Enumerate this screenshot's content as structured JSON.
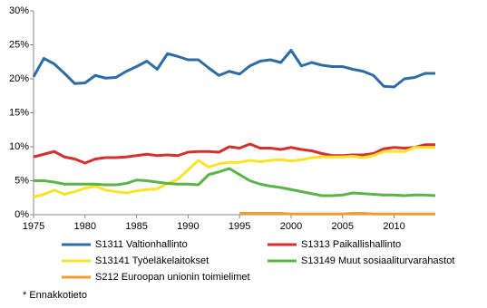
{
  "chart_data": {
    "type": "line",
    "x": [
      1975,
      1976,
      1977,
      1978,
      1979,
      1980,
      1981,
      1982,
      1983,
      1984,
      1985,
      1986,
      1987,
      1988,
      1989,
      1990,
      1991,
      1992,
      1993,
      1994,
      1995,
      1996,
      1997,
      1998,
      1999,
      2000,
      2001,
      2002,
      2003,
      2004,
      2005,
      2006,
      2007,
      2008,
      2009,
      2010,
      2011,
      2012,
      2013,
      2014
    ],
    "series": [
      {
        "name": "S1311 Valtionhallinto",
        "color": "#2e6ca4",
        "values": [
          20.3,
          23.0,
          22.2,
          20.8,
          19.3,
          19.4,
          20.5,
          20.1,
          20.2,
          21.1,
          21.8,
          22.6,
          21.4,
          23.7,
          23.3,
          22.8,
          22.8,
          21.6,
          20.5,
          21.1,
          20.7,
          21.9,
          22.6,
          22.8,
          22.4,
          24.2,
          21.9,
          22.4,
          22.0,
          21.8,
          21.8,
          21.4,
          21.1,
          20.5,
          18.9,
          18.8,
          20.0,
          20.2,
          20.8,
          20.8
        ]
      },
      {
        "name": "S1313 Paikallishallinto",
        "color": "#d62f2f",
        "values": [
          8.5,
          8.9,
          9.3,
          8.5,
          8.2,
          7.6,
          8.2,
          8.4,
          8.4,
          8.5,
          8.7,
          8.9,
          8.7,
          8.8,
          8.7,
          9.2,
          9.3,
          9.3,
          9.2,
          10.0,
          9.8,
          10.4,
          9.8,
          9.8,
          9.6,
          9.9,
          9.6,
          9.4,
          9.0,
          8.7,
          8.7,
          8.8,
          8.8,
          9.0,
          9.7,
          9.9,
          9.8,
          9.9,
          10.3,
          10.3
        ]
      },
      {
        "name": "S13141 Työeläkelaitokset",
        "color": "#f9e428",
        "values": [
          2.6,
          3.0,
          3.6,
          3.0,
          3.4,
          3.9,
          4.2,
          3.6,
          3.4,
          3.2,
          3.5,
          3.7,
          3.8,
          4.6,
          5.2,
          6.6,
          8.0,
          7.0,
          7.5,
          7.7,
          7.7,
          8.0,
          7.8,
          8.0,
          8.1,
          7.9,
          8.1,
          8.4,
          8.5,
          8.5,
          8.5,
          8.6,
          8.4,
          8.7,
          9.3,
          9.3,
          9.3,
          9.9,
          9.9,
          9.9
        ]
      },
      {
        "name": "S13149 Muut sosiaaliturvarahastot",
        "color": "#5cb346",
        "values": [
          5.0,
          5.0,
          4.8,
          4.5,
          4.5,
          4.5,
          4.5,
          4.4,
          4.4,
          4.6,
          5.1,
          5.0,
          4.8,
          4.6,
          4.5,
          4.5,
          4.4,
          5.9,
          6.3,
          6.8,
          5.9,
          5.0,
          4.5,
          4.2,
          4.0,
          3.7,
          3.4,
          3.1,
          2.8,
          2.8,
          2.9,
          3.2,
          3.1,
          3.0,
          2.9,
          2.9,
          2.8,
          2.9,
          2.9,
          2.8
        ]
      },
      {
        "name": "S212 Euroopan unionin toimielimet",
        "color": "#f39c2c",
        "values": [
          null,
          null,
          null,
          null,
          null,
          null,
          null,
          null,
          null,
          null,
          null,
          null,
          null,
          null,
          null,
          null,
          null,
          null,
          null,
          null,
          0.2,
          0.2,
          0.2,
          0.2,
          0.2,
          0.1,
          0.1,
          0.1,
          0.1,
          0.1,
          0.1,
          0.2,
          0.2,
          0.1,
          0.1,
          0.1,
          0.1,
          0.1,
          0.1,
          0.1
        ]
      }
    ],
    "xlim": [
      1975,
      2014
    ],
    "xticks": [
      1975,
      1980,
      1985,
      1990,
      1995,
      2000,
      2005,
      2010
    ],
    "ylim": [
      0,
      30
    ],
    "yticks": [
      {
        "value": 0,
        "label": "0%"
      },
      {
        "value": 5,
        "label": "5%"
      },
      {
        "value": 10,
        "label": "10%"
      },
      {
        "value": 15,
        "label": "15%"
      },
      {
        "value": 20,
        "label": "20%"
      },
      {
        "value": 25,
        "label": "25%"
      },
      {
        "value": 30,
        "label": "30%"
      }
    ],
    "grid": false,
    "legend": "bottom",
    "footnote": "* Ennakkotieto"
  }
}
